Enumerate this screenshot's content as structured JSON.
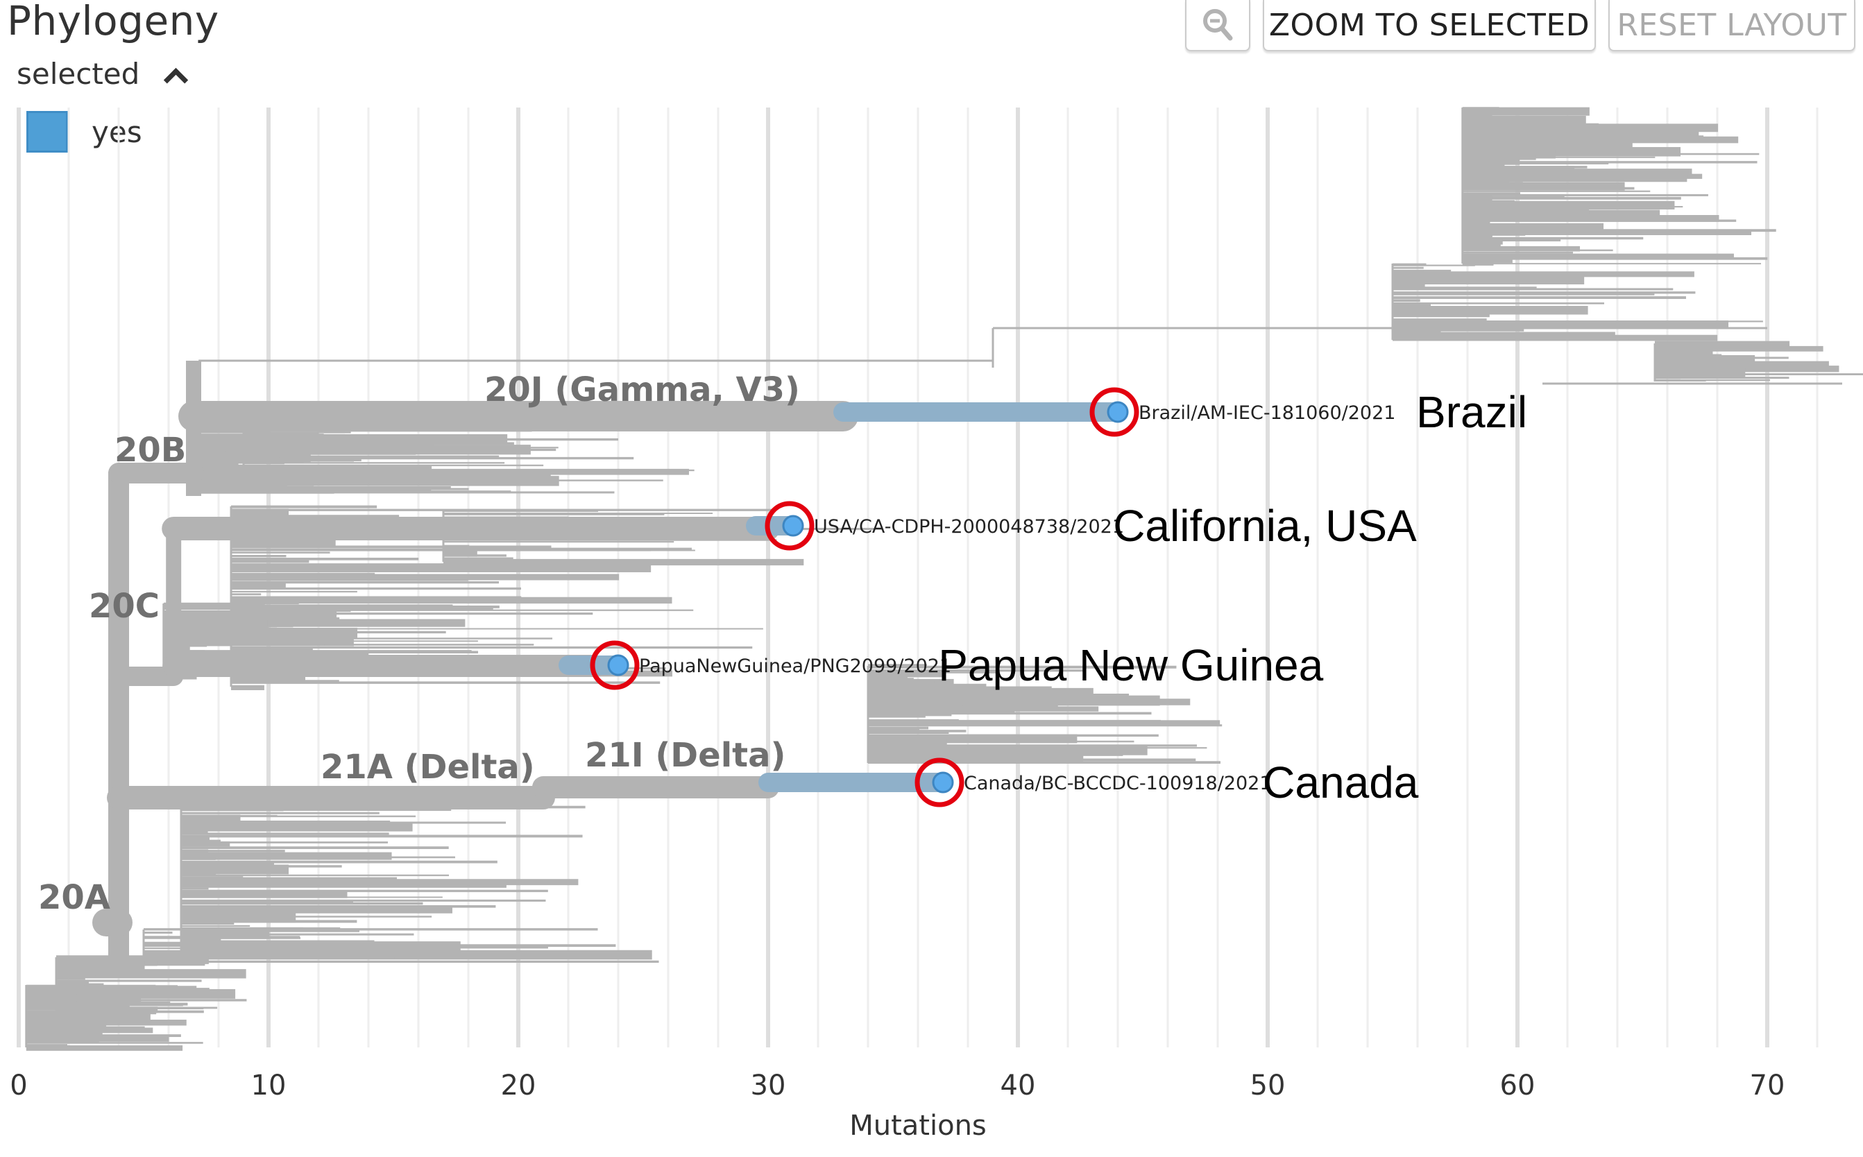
{
  "panel": {
    "title": "Phylogeny",
    "legend": {
      "title": "selected",
      "collapse_icon": "chevron-up-icon",
      "items": [
        {
          "label": "yes",
          "color": "#4f9fd6"
        }
      ]
    },
    "buttons": {
      "zoom_out_icon": "zoom-out-icon",
      "zoom_to_selected": "ZOOM TO SELECTED",
      "reset_layout": "RESET LAYOUT"
    }
  },
  "colors": {
    "branch": "#b3b3b3",
    "selected_branch": "#8fb0c9",
    "selected_tip": "#5aabec",
    "highlight_ring": "#e3000f",
    "grid_major": "#dedede",
    "grid_minor": "#eeeeee",
    "clade_label": "#707070"
  },
  "chart_data": {
    "type": "tree",
    "title": "Phylogeny",
    "xlabel": "Mutations",
    "ylabel": "",
    "xlim": [
      0,
      73
    ],
    "x_ticks": [
      0,
      10,
      20,
      30,
      40,
      50,
      60,
      70
    ],
    "x_tick_labels": [
      "0",
      "10",
      "20",
      "30",
      "40",
      "50",
      "60",
      "70"
    ],
    "grid": true,
    "clade_labels": [
      {
        "label": "20A",
        "x": 4
      },
      {
        "label": "20B",
        "x": 7
      },
      {
        "label": "20C",
        "x": 6
      },
      {
        "label": "20J (Gamma, V3)",
        "x": 30
      },
      {
        "label": "21A (Delta)",
        "x": 21
      },
      {
        "label": "21I (Delta)",
        "x": 28
      }
    ],
    "selected_tips": [
      {
        "strain": "Brazil/AM-IEC-181060/2021",
        "mutations": 44,
        "annotation": "Brazil",
        "clade": "20J (Gamma, V3)"
      },
      {
        "strain": "USA/CA-CDPH-2000048738/2021",
        "mutations": 31,
        "annotation": "California, USA",
        "clade": "20C"
      },
      {
        "strain": "PapuaNewGuinea/PNG2099/2021",
        "mutations": 24,
        "annotation": "Papua New Guinea",
        "clade": "20C"
      },
      {
        "strain": "Canada/BC-BCCDC-100918/2021",
        "mutations": 37,
        "annotation": "Canada",
        "clade": "21I (Delta)"
      }
    ]
  }
}
